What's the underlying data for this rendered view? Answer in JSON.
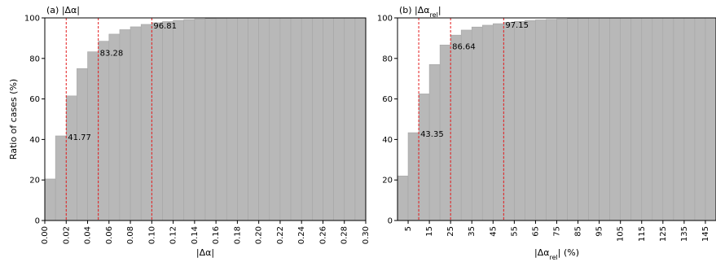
{
  "chart_data": [
    {
      "type": "bar",
      "title": "(a) |Δα|",
      "xlabel": "|Δα|",
      "ylabel": "Ratio of cases (%)",
      "xlim": [
        0,
        0.3
      ],
      "ylim": [
        0,
        100
      ],
      "bar_width": 0.01,
      "bar_color": "#b8b8b8",
      "x": [
        0.01,
        0.02,
        0.03,
        0.04,
        0.05,
        0.06,
        0.07,
        0.08,
        0.09,
        0.1,
        0.11,
        0.12,
        0.13,
        0.14,
        0.15,
        0.16,
        0.17,
        0.18,
        0.19,
        0.2,
        0.21,
        0.22,
        0.23,
        0.24,
        0.25,
        0.26,
        0.27,
        0.28,
        0.29,
        0.3
      ],
      "values": [
        20.5,
        41.77,
        61.5,
        75,
        83.28,
        88.5,
        92,
        94.2,
        95.6,
        96.81,
        97.6,
        98.2,
        98.8,
        99.2,
        99.5,
        99.7,
        99.85,
        99.9,
        100,
        100,
        100,
        100,
        100,
        100,
        100,
        100,
        100,
        100,
        100,
        100
      ],
      "xticks": [
        0.0,
        0.02,
        0.04,
        0.06,
        0.08,
        0.1,
        0.12,
        0.14,
        0.16,
        0.18,
        0.2,
        0.22,
        0.24,
        0.26,
        0.28,
        0.3
      ],
      "xtick_labels": [
        "0.00",
        "0.02",
        "0.04",
        "0.06",
        "0.08",
        "0.10",
        "0.12",
        "0.14",
        "0.16",
        "0.18",
        "0.20",
        "0.22",
        "0.24",
        "0.26",
        "0.28",
        "0.30"
      ],
      "yticks": [
        0,
        20,
        40,
        60,
        80,
        100
      ],
      "ytick_labels": [
        "0",
        "20",
        "40",
        "60",
        "80",
        "100"
      ],
      "vlines": [
        0.02,
        0.05,
        0.1
      ],
      "vline_color": "#e41a1c",
      "annotations": [
        {
          "x": 0.02,
          "y": 41.77,
          "text": "41.77"
        },
        {
          "x": 0.05,
          "y": 83.28,
          "text": "83.28"
        },
        {
          "x": 0.1,
          "y": 96.81,
          "text": "96.81"
        }
      ]
    },
    {
      "type": "bar",
      "title": "(b) |Δα",
      "title_sub": "rel",
      "title_tail": "|",
      "xlabel": "|Δα",
      "xlabel_sub": "rel",
      "xlabel_tail": "| (%)",
      "ylabel": "",
      "xlim": [
        0,
        150
      ],
      "ylim": [
        0,
        100
      ],
      "bar_width": 5,
      "bar_color": "#b8b8b8",
      "x": [
        5,
        10,
        15,
        20,
        25,
        30,
        35,
        40,
        45,
        50,
        55,
        60,
        65,
        70,
        75,
        80,
        85,
        90,
        95,
        100,
        105,
        110,
        115,
        120,
        125,
        130,
        135,
        140,
        145,
        150
      ],
      "values": [
        22,
        43.35,
        62.5,
        77,
        86.64,
        91.5,
        94,
        95.5,
        96.4,
        97.15,
        97.8,
        98.3,
        98.7,
        99,
        99.3,
        99.5,
        99.7,
        99.8,
        99.9,
        100,
        100,
        100,
        100,
        100,
        100,
        100,
        100,
        100,
        100,
        100
      ],
      "xticks": [
        5,
        15,
        25,
        35,
        45,
        55,
        65,
        75,
        85,
        95,
        105,
        115,
        125,
        135,
        145
      ],
      "xtick_labels": [
        "5",
        "15",
        "25",
        "35",
        "45",
        "55",
        "65",
        "75",
        "85",
        "95",
        "105",
        "115",
        "125",
        "135",
        "145"
      ],
      "yticks": [
        0,
        20,
        40,
        60,
        80,
        100
      ],
      "ytick_labels": [
        "0",
        "20",
        "40",
        "60",
        "80",
        "100"
      ],
      "vlines": [
        10,
        25,
        50
      ],
      "vline_color": "#e41a1c",
      "annotations": [
        {
          "x": 10,
          "y": 43.35,
          "text": "43.35"
        },
        {
          "x": 25,
          "y": 86.64,
          "text": "86.64"
        },
        {
          "x": 50,
          "y": 97.15,
          "text": "97.15"
        }
      ]
    }
  ]
}
